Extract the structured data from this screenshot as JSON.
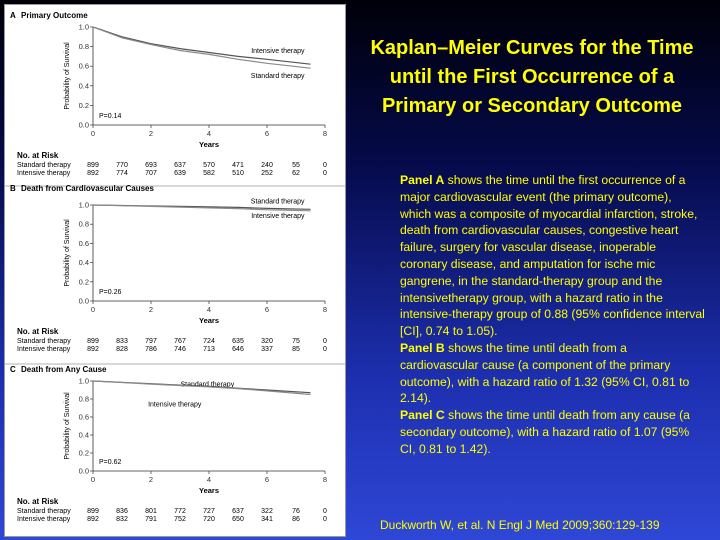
{
  "slide": {
    "title": "Kaplan–Meier Curves for the Time until the First Occurrence of a Primary or Secondary Outcome",
    "paragraphs": [
      {
        "lead": "Panel A",
        "text": " shows the time until the first occurrence of a major cardiovascular event (the primary outcome), which was a composite of myocardial infarction, stroke, death from cardiovascular causes, congestive heart failure, surgery for vascular disease, inoperable coronary disease, and amputation for ische mic gangrene, in the standard-therapy group and the intensivetherapy group, with a hazard ratio in the intensive-therapy group of 0.88 (95% confidence interval [CI], 0.74 to 1.05)."
      },
      {
        "lead": "Panel B",
        "text": " shows the time until death from a cardiovascular cause (a component of the primary outcome), with a hazard ratio of 1.32 (95% CI, 0.81 to 2.14)."
      },
      {
        "lead": "Panel C",
        "text": " shows the time until death from any cause (a secondary outcome), with a hazard ratio of 1.07 (95% CI, 0.81 to 1.42)."
      }
    ],
    "citation": "Duckworth W, et al. N Engl J Med 2009;360:129-139",
    "colors": {
      "title": "#ffff00",
      "text": "#ffff00",
      "background": "#1d2fb0"
    }
  },
  "chart_data": [
    {
      "type": "line",
      "letter": "A",
      "title": "Primary Outcome",
      "xlabel": "Years",
      "ylabel": "Probability of Survival",
      "xlim": [
        0,
        8
      ],
      "ylim": [
        0,
        1.0
      ],
      "xticks": [
        "0",
        "2",
        "4",
        "6",
        "8"
      ],
      "yticks": [
        "0.0",
        "0.2",
        "0.4",
        "0.6",
        "0.8",
        "1.0"
      ],
      "p_value": "P=0.14",
      "series": [
        {
          "name": "Intensive therapy",
          "x": [
            0,
            1,
            2,
            3,
            4,
            5,
            6,
            7.5
          ],
          "y": [
            1.0,
            0.9,
            0.83,
            0.78,
            0.74,
            0.7,
            0.67,
            0.62
          ]
        },
        {
          "name": "Standard therapy",
          "x": [
            0,
            1,
            2,
            3,
            4,
            5,
            6,
            7.5
          ],
          "y": [
            1.0,
            0.89,
            0.82,
            0.76,
            0.72,
            0.67,
            0.63,
            0.58
          ]
        }
      ],
      "risk_table": {
        "heading": "No. at Risk",
        "rows": [
          {
            "label": "Standard therapy",
            "values": [
              "899",
              "770",
              "693",
              "637",
              "570",
              "471",
              "240",
              "55",
              "0"
            ]
          },
          {
            "label": "Intensive therapy",
            "values": [
              "892",
              "774",
              "707",
              "639",
              "582",
              "510",
              "252",
              "62",
              "0"
            ]
          }
        ]
      }
    },
    {
      "type": "line",
      "letter": "B",
      "title": "Death from Cardiovascular Causes",
      "xlabel": "Years",
      "ylabel": "Probability of Survival",
      "xlim": [
        0,
        8
      ],
      "ylim": [
        0,
        1.0
      ],
      "xticks": [
        "0",
        "2",
        "4",
        "6",
        "8"
      ],
      "yticks": [
        "0.0",
        "0.2",
        "0.4",
        "0.6",
        "0.8",
        "1.0"
      ],
      "p_value": "P=0.26",
      "series": [
        {
          "name": "Standard therapy",
          "x": [
            0,
            1,
            2,
            3,
            4,
            5,
            6,
            7.5
          ],
          "y": [
            1.0,
            0.995,
            0.99,
            0.985,
            0.98,
            0.975,
            0.965,
            0.955
          ]
        },
        {
          "name": "Intensive therapy",
          "x": [
            0,
            1,
            2,
            3,
            4,
            5,
            6,
            7.5
          ],
          "y": [
            1.0,
            0.993,
            0.985,
            0.978,
            0.97,
            0.962,
            0.95,
            0.94
          ]
        }
      ],
      "risk_table": {
        "heading": "No. at Risk",
        "rows": [
          {
            "label": "Standard therapy",
            "values": [
              "899",
              "833",
              "797",
              "767",
              "724",
              "635",
              "320",
              "75",
              "0"
            ]
          },
          {
            "label": "Intensive therapy",
            "values": [
              "892",
              "828",
              "786",
              "746",
              "713",
              "646",
              "337",
              "85",
              "0"
            ]
          }
        ]
      }
    },
    {
      "type": "line",
      "letter": "C",
      "title": "Death from Any Cause",
      "xlabel": "Years",
      "ylabel": "Probability of Survival",
      "xlim": [
        0,
        8
      ],
      "ylim": [
        0,
        1.0
      ],
      "xticks": [
        "0",
        "2",
        "4",
        "6",
        "8"
      ],
      "yticks": [
        "0.0",
        "0.2",
        "0.4",
        "0.6",
        "0.8",
        "1.0"
      ],
      "p_value": "P=0.62",
      "series": [
        {
          "name": "Standard therapy",
          "x": [
            0,
            1,
            2,
            3,
            4,
            5,
            6,
            7.5
          ],
          "y": [
            1.0,
            0.985,
            0.97,
            0.955,
            0.94,
            0.92,
            0.9,
            0.87
          ]
        },
        {
          "name": "Intensive therapy",
          "x": [
            0,
            1,
            2,
            3,
            4,
            5,
            6,
            7.5
          ],
          "y": [
            1.0,
            0.983,
            0.965,
            0.95,
            0.935,
            0.915,
            0.89,
            0.85
          ]
        }
      ],
      "risk_table": {
        "heading": "No. at Risk",
        "rows": [
          {
            "label": "Standard therapy",
            "values": [
              "899",
              "836",
              "801",
              "772",
              "727",
              "637",
              "322",
              "76",
              "0"
            ]
          },
          {
            "label": "Intensive therapy",
            "values": [
              "892",
              "832",
              "791",
              "752",
              "720",
              "650",
              "341",
              "86",
              "0"
            ]
          }
        ]
      }
    }
  ]
}
